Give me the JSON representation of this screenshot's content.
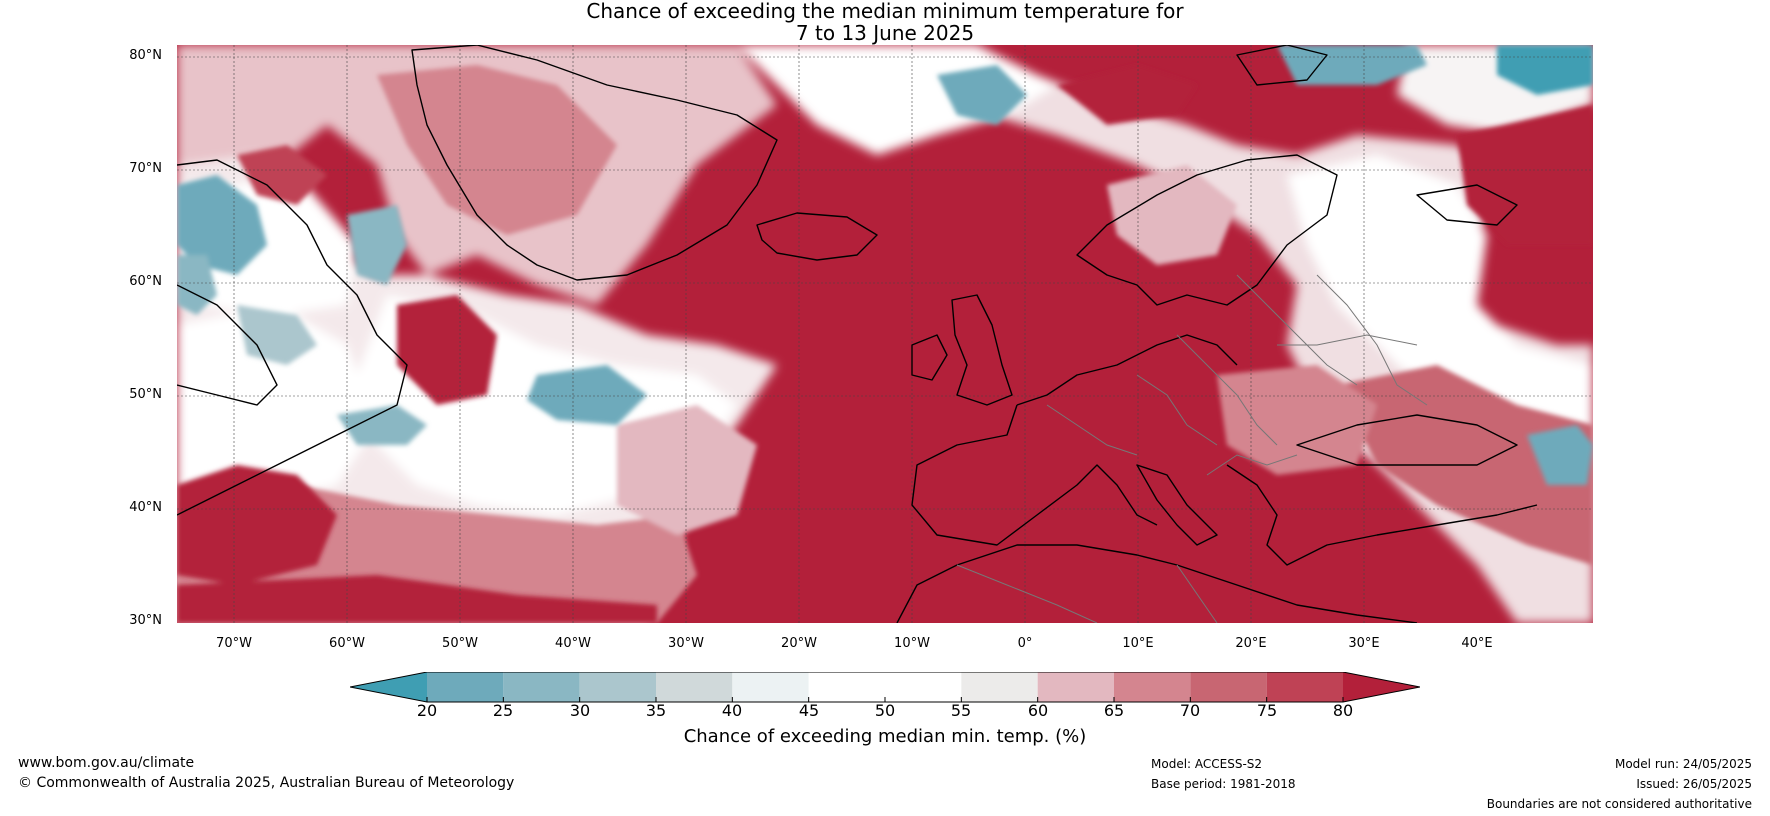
{
  "title": {
    "line1": "Chance of exceeding the median minimum temperature for",
    "line2": "7 to 13 June 2025"
  },
  "map": {
    "latitude_labels": [
      "80°N",
      "70°N",
      "60°N",
      "50°N",
      "40°N",
      "30°N"
    ],
    "longitude_labels": [
      "70°W",
      "60°W",
      "50°W",
      "40°W",
      "30°W",
      "20°W",
      "10°W",
      "0°",
      "10°E",
      "20°E",
      "30°E",
      "40°E"
    ],
    "dominant_color": "#b3203a"
  },
  "colorbar": {
    "title": "Chance of exceeding median min. temp. (%)",
    "ticks": [
      "20",
      "25",
      "30",
      "35",
      "40",
      "45",
      "50",
      "55",
      "60",
      "65",
      "70",
      "75",
      "80"
    ],
    "colors": [
      "#3f9eb3",
      "#6eaabb",
      "#8ab7c3",
      "#abc6cd",
      "#d0d9da",
      "#ecf2f3",
      "#ffffff",
      "#ffffff",
      "#ecebea",
      "#e3b8c0",
      "#d4858f",
      "#c86672",
      "#bf4255",
      "#b3203a"
    ]
  },
  "footer": {
    "website": "www.bom.gov.au/climate",
    "copyright": "© Commonwealth of Australia 2025, Australian Bureau of Meteorology",
    "model": "Model: ACCESS-S2",
    "base_period": "Base period: 1981-2018",
    "model_run": "Model run: 24/05/2025",
    "issued": "Issued: 26/05/2025",
    "disclaimer": "Boundaries are not considered authoritative"
  }
}
